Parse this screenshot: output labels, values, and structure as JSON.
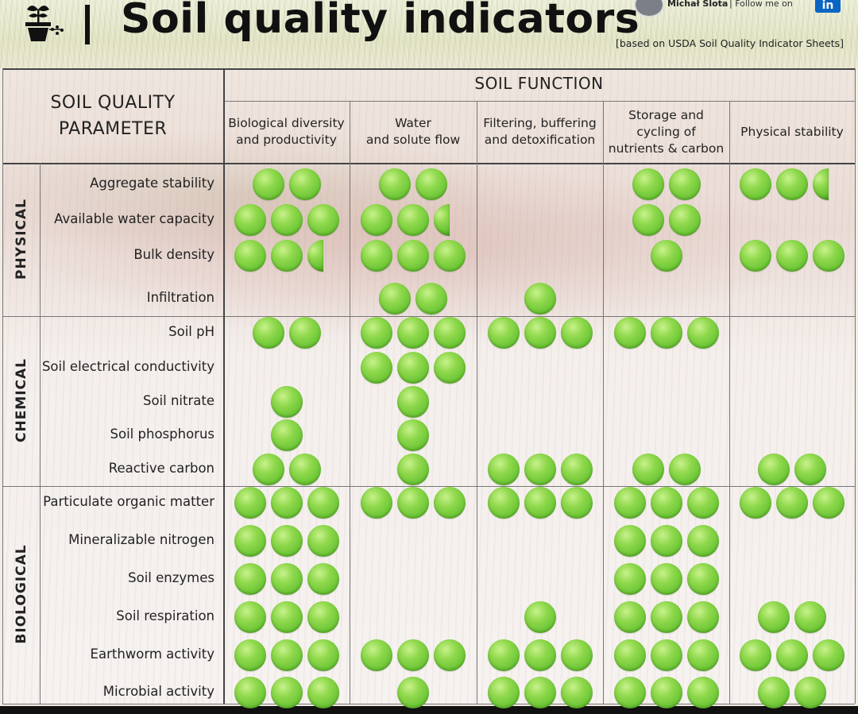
{
  "header": {
    "title": "Soil quality indicators",
    "source_note": "[based on USDA Soil Quality Indicator Sheets]",
    "author": "Michał Slota",
    "follow_text": "| Follow me on",
    "logo_icon": "plant-pot-icon",
    "linkedin_icon": "linkedin-icon"
  },
  "table": {
    "param_header": [
      "SOIL QUALITY",
      "PARAMETER"
    ],
    "function_header": "SOIL FUNCTION",
    "columns": [
      [
        "Biological diversity",
        "and productivity"
      ],
      [
        "Water",
        "and solute flow"
      ],
      [
        "Filtering, buffering",
        "and detoxification"
      ],
      [
        "Storage and",
        "cycling of",
        "nutrients & carbon"
      ],
      [
        "Physical stability"
      ]
    ],
    "categories": [
      {
        "name": "PHYSICAL",
        "rows": [
          {
            "label": "Aggregate stability",
            "ratings": [
              2,
              2,
              0,
              2,
              2.5
            ]
          },
          {
            "label": "Available water capacity",
            "ratings": [
              3,
              2.5,
              0,
              2,
              0
            ]
          },
          {
            "label": "Bulk density",
            "ratings": [
              2.5,
              3,
              0,
              1,
              3
            ]
          },
          {
            "label": "Infiltration",
            "ratings": [
              0,
              2,
              1,
              0,
              0
            ]
          }
        ]
      },
      {
        "name": "CHEMICAL",
        "rows": [
          {
            "label": "Soil pH",
            "ratings": [
              2,
              3,
              3,
              3,
              0
            ]
          },
          {
            "label": "Soil electrical conductivity",
            "ratings": [
              0,
              3,
              0,
              0,
              0
            ]
          },
          {
            "label": "Soil nitrate",
            "ratings": [
              1,
              1,
              0,
              0,
              0
            ]
          },
          {
            "label": "Soil phosphorus",
            "ratings": [
              1,
              1,
              0,
              0,
              0
            ]
          },
          {
            "label": "Reactive carbon",
            "ratings": [
              2,
              1,
              3,
              2,
              2
            ]
          }
        ]
      },
      {
        "name": "BIOLOGICAL",
        "rows": [
          {
            "label": "Particulate organic matter",
            "ratings": [
              3,
              3,
              3,
              3,
              3
            ]
          },
          {
            "label": "Mineralizable nitrogen",
            "ratings": [
              3,
              0,
              0,
              3,
              0
            ]
          },
          {
            "label": "Soil enzymes",
            "ratings": [
              3,
              0,
              0,
              3,
              0
            ]
          },
          {
            "label": "Soil respiration",
            "ratings": [
              3,
              0,
              1,
              3,
              2
            ]
          },
          {
            "label": "Earthworm activity",
            "ratings": [
              3,
              3,
              3,
              3,
              3
            ]
          },
          {
            "label": "Microbial activity",
            "ratings": [
              3,
              1,
              3,
              3,
              2
            ]
          }
        ]
      }
    ]
  }
}
